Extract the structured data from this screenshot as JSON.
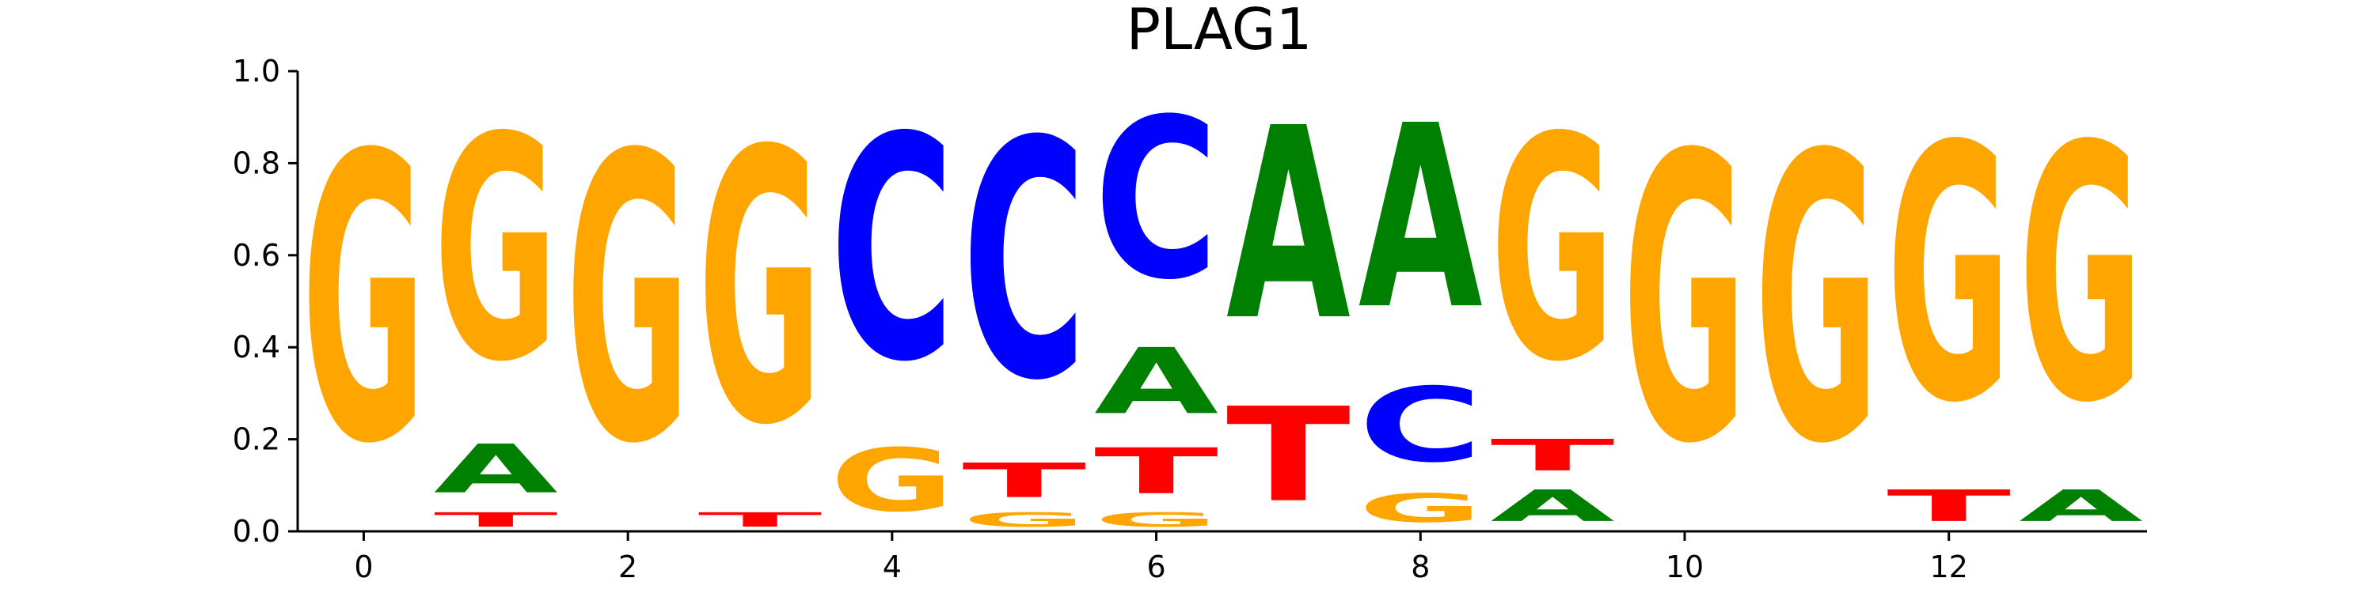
{
  "chart_data": {
    "type": "sequence-logo",
    "title": "PLAG1",
    "xlabel": "",
    "ylabel": "",
    "ylim": [
      0,
      1.0
    ],
    "xlim": [
      -0.5,
      13.5
    ],
    "x_ticks": [
      0,
      2,
      4,
      6,
      8,
      10,
      12
    ],
    "y_ticks": [
      0.0,
      0.2,
      0.4,
      0.6,
      0.8,
      1.0
    ],
    "colors": {
      "A": "#008000",
      "C": "#0000ff",
      "G": "#ffa500",
      "T": "#ff0000"
    },
    "positions": [
      {
        "x": 0,
        "letters": [
          {
            "base": "G",
            "value": 1.0
          }
        ]
      },
      {
        "x": 1,
        "letters": [
          {
            "base": "T",
            "value": 0.05
          },
          {
            "base": "A",
            "value": 0.17
          },
          {
            "base": "G",
            "value": 0.78
          }
        ]
      },
      {
        "x": 2,
        "letters": [
          {
            "base": "G",
            "value": 1.0
          }
        ]
      },
      {
        "x": 3,
        "letters": [
          {
            "base": "T",
            "value": 0.05
          },
          {
            "base": "G",
            "value": 0.95
          }
        ]
      },
      {
        "x": 4,
        "letters": [
          {
            "base": "G",
            "value": 0.22
          },
          {
            "base": "C",
            "value": 0.78
          }
        ]
      },
      {
        "x": 5,
        "letters": [
          {
            "base": "G",
            "value": 0.05
          },
          {
            "base": "T",
            "value": 0.12
          },
          {
            "base": "C",
            "value": 0.83
          }
        ]
      },
      {
        "x": 6,
        "letters": [
          {
            "base": "G",
            "value": 0.05
          },
          {
            "base": "T",
            "value": 0.16
          },
          {
            "base": "A",
            "value": 0.23
          },
          {
            "base": "C",
            "value": 0.56
          }
        ]
      },
      {
        "x": 7,
        "letters": [
          {
            "base": "T",
            "value": 0.33
          },
          {
            "base": "A",
            "value": 0.67
          }
        ]
      },
      {
        "x": 8,
        "letters": [
          {
            "base": "G",
            "value": 0.1
          },
          {
            "base": "C",
            "value": 0.26
          },
          {
            "base": "A",
            "value": 0.64
          }
        ]
      },
      {
        "x": 9,
        "letters": [
          {
            "base": "A",
            "value": 0.11
          },
          {
            "base": "T",
            "value": 0.11
          },
          {
            "base": "G",
            "value": 0.78
          }
        ]
      },
      {
        "x": 10,
        "letters": [
          {
            "base": "G",
            "value": 1.0
          }
        ]
      },
      {
        "x": 11,
        "letters": [
          {
            "base": "G",
            "value": 1.0
          }
        ]
      },
      {
        "x": 12,
        "letters": [
          {
            "base": "T",
            "value": 0.11
          },
          {
            "base": "G",
            "value": 0.89
          }
        ]
      },
      {
        "x": 13,
        "letters": [
          {
            "base": "A",
            "value": 0.11
          },
          {
            "base": "G",
            "value": 0.89
          }
        ]
      }
    ]
  }
}
